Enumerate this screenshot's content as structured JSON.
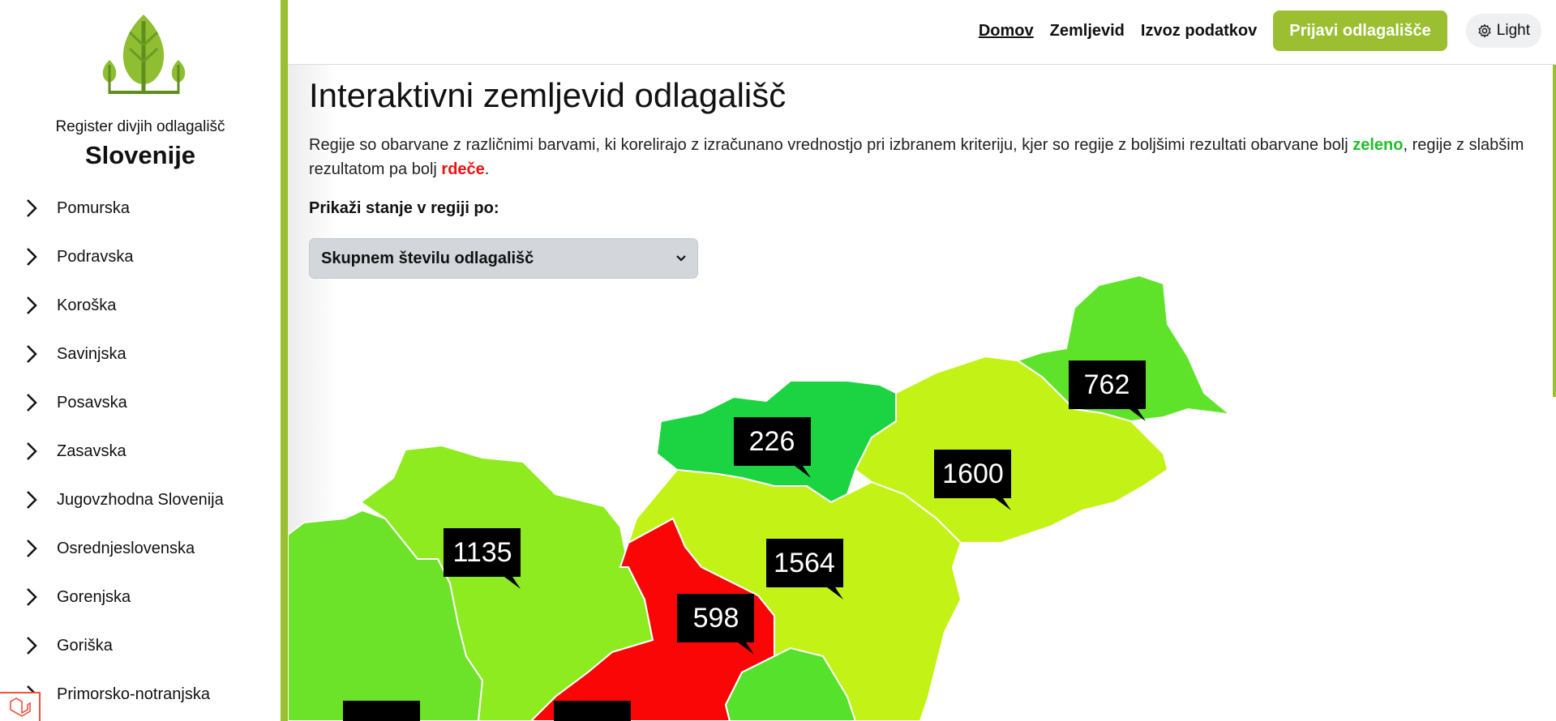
{
  "sidebar": {
    "brand_line1": "Register divjih odlagališč",
    "brand_line2": "Slovenije",
    "regions": [
      {
        "label": "Pomurska"
      },
      {
        "label": "Podravska"
      },
      {
        "label": "Koroška"
      },
      {
        "label": "Savinjska"
      },
      {
        "label": "Posavska"
      },
      {
        "label": "Zasavska"
      },
      {
        "label": "Jugovzhodna Slovenija"
      },
      {
        "label": "Osrednjeslovenska"
      },
      {
        "label": "Gorenjska"
      },
      {
        "label": "Goriška"
      },
      {
        "label": "Primorsko-notranjska"
      }
    ]
  },
  "header": {
    "nav": [
      "Domov",
      "Zemljevid",
      "Izvoz podatkov"
    ],
    "report_button": "Prijavi odlagališče",
    "theme_button": "Light"
  },
  "main": {
    "title": "Interaktivni zemljevid odlagališč",
    "intro_before": "Regije so obarvane z različnimi barvami, ki korelirajo z izračunano vrednostjo pri izbranem kriteriju, kjer so regije z boljšimi rezultati obarvane bolj ",
    "intro_green": "zeleno",
    "intro_middle": ", regije z slabšim rezultatom pa bolj ",
    "intro_red": "rdeče",
    "intro_end": ".",
    "select_label": "Prikaži stanje v regiji po:",
    "select_value": "Skupnem številu odlagališč"
  },
  "map": {
    "regions": [
      {
        "name": "Pomurska",
        "value": "762",
        "color": "#5fe32a"
      },
      {
        "name": "Podravska",
        "value": "1600",
        "color": "#c3f217"
      },
      {
        "name": "Koroška",
        "value": "226",
        "color": "#1cd341"
      },
      {
        "name": "Savinjska",
        "value": "1564",
        "color": "#c3f217"
      },
      {
        "name": "Gorenjska",
        "value": "1135",
        "color": "#8deb1f"
      },
      {
        "name": "Osrednjeslovenska",
        "value": "598",
        "color": "#fa0606"
      },
      {
        "name": "Goriška",
        "value": "",
        "color": "#6ce228"
      },
      {
        "name": "Zasavska",
        "value": "",
        "color": "#55e12c"
      }
    ]
  },
  "colors": {
    "accent": "#9bbf30",
    "good": "#1fbf2a",
    "bad": "#ee1111"
  }
}
